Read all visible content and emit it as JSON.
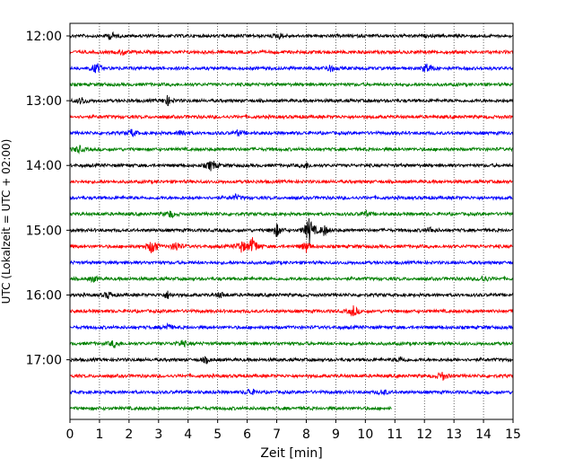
{
  "chart_data": {
    "type": "line",
    "xlabel": "Zeit  [min]",
    "ylabel": "UTC (Lokalzeit = UTC + 02:00)",
    "xlim": [
      0,
      15
    ],
    "x_ticks": [
      "0",
      "1",
      "2",
      "3",
      "4",
      "5",
      "6",
      "7",
      "8",
      "9",
      "10",
      "11",
      "12",
      "13",
      "14",
      "15"
    ],
    "y_tick_labels": [
      "12:00",
      "13:00",
      "14:00",
      "15:00",
      "16:00",
      "17:00"
    ],
    "grid": "vertical-dotted",
    "series_colors": [
      "#000000",
      "#ff0000",
      "#0000ff",
      "#008000"
    ],
    "rows": [
      {
        "start": "12:00",
        "color": "#000000",
        "end_min": 15,
        "events": [
          [
            1.4,
            4
          ],
          [
            7.1,
            3
          ]
        ]
      },
      {
        "start": "12:15",
        "color": "#ff0000",
        "end_min": 15,
        "events": [
          [
            1.8,
            3
          ]
        ]
      },
      {
        "start": "12:30",
        "color": "#0000ff",
        "end_min": 15,
        "events": [
          [
            0.9,
            6
          ],
          [
            8.8,
            4
          ],
          [
            12.1,
            6
          ]
        ]
      },
      {
        "start": "12:45",
        "color": "#008000",
        "end_min": 15,
        "events": []
      },
      {
        "start": "13:00",
        "color": "#000000",
        "end_min": 15,
        "events": [
          [
            0.4,
            4
          ],
          [
            3.3,
            5
          ]
        ]
      },
      {
        "start": "13:15",
        "color": "#ff0000",
        "end_min": 15,
        "events": []
      },
      {
        "start": "13:30",
        "color": "#0000ff",
        "end_min": 15,
        "events": [
          [
            2.1,
            4
          ],
          [
            3.8,
            4
          ],
          [
            5.7,
            3
          ]
        ]
      },
      {
        "start": "13:45",
        "color": "#008000",
        "end_min": 15,
        "events": [
          [
            0.3,
            4
          ]
        ]
      },
      {
        "start": "14:00",
        "color": "#000000",
        "end_min": 15,
        "events": [
          [
            4.8,
            7
          ],
          [
            8.0,
            3
          ]
        ]
      },
      {
        "start": "14:15",
        "color": "#ff0000",
        "end_min": 15,
        "events": []
      },
      {
        "start": "14:30",
        "color": "#0000ff",
        "end_min": 15,
        "events": [
          [
            5.6,
            3
          ]
        ]
      },
      {
        "start": "14:45",
        "color": "#008000",
        "end_min": 15,
        "events": [
          [
            3.4,
            4
          ],
          [
            10.0,
            3
          ]
        ]
      },
      {
        "start": "15:00",
        "color": "#000000",
        "end_min": 15,
        "events": [
          [
            7.0,
            7
          ],
          [
            8.1,
            16
          ],
          [
            8.6,
            6
          ],
          [
            12.2,
            3
          ]
        ]
      },
      {
        "start": "15:15",
        "color": "#ff0000",
        "end_min": 15,
        "events": [
          [
            2.8,
            10
          ],
          [
            3.6,
            6
          ],
          [
            5.8,
            7
          ],
          [
            6.2,
            11
          ],
          [
            8.0,
            6
          ]
        ]
      },
      {
        "start": "15:30",
        "color": "#0000ff",
        "end_min": 15,
        "events": []
      },
      {
        "start": "15:45",
        "color": "#008000",
        "end_min": 15,
        "events": [
          [
            0.8,
            3
          ],
          [
            14.0,
            4
          ]
        ]
      },
      {
        "start": "16:00",
        "color": "#000000",
        "end_min": 15,
        "events": [
          [
            1.3,
            4
          ],
          [
            3.3,
            4
          ],
          [
            5.1,
            3
          ]
        ]
      },
      {
        "start": "16:15",
        "color": "#ff0000",
        "end_min": 15,
        "events": [
          [
            9.6,
            6
          ]
        ]
      },
      {
        "start": "16:30",
        "color": "#0000ff",
        "end_min": 15,
        "events": [
          [
            3.3,
            4
          ]
        ]
      },
      {
        "start": "16:45",
        "color": "#008000",
        "end_min": 15,
        "events": [
          [
            1.5,
            4
          ],
          [
            3.8,
            4
          ]
        ]
      },
      {
        "start": "17:00",
        "color": "#000000",
        "end_min": 15,
        "events": [
          [
            4.6,
            3
          ],
          [
            11.2,
            3
          ]
        ]
      },
      {
        "start": "17:15",
        "color": "#ff0000",
        "end_min": 15,
        "events": [
          [
            12.6,
            5
          ]
        ]
      },
      {
        "start": "17:30",
        "color": "#0000ff",
        "end_min": 15,
        "events": [
          [
            6.1,
            4
          ],
          [
            10.6,
            3
          ]
        ]
      },
      {
        "start": "17:45",
        "color": "#008000",
        "end_min": 10.9,
        "events": []
      }
    ]
  }
}
